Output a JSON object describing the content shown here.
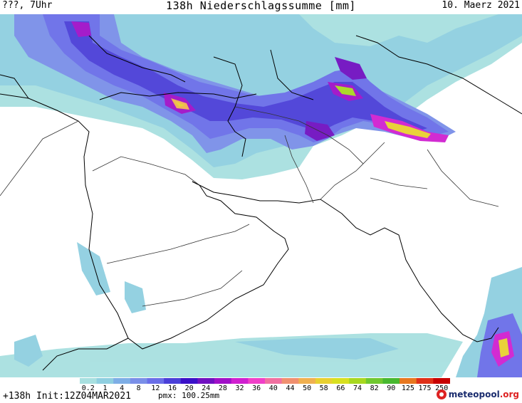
{
  "header": {
    "left": "???, 7Uhr",
    "center": "138h Niederschlagssumme [mm]",
    "right": "10. Maerz 2021"
  },
  "map": {
    "variable": "precipitation sum",
    "unit": "mm",
    "background_color": "#ffffff",
    "border_color": "#000000"
  },
  "legend": {
    "labels": [
      "0.2",
      "1",
      "4",
      "8",
      "12",
      "16",
      "20",
      "24",
      "28",
      "32",
      "36",
      "40",
      "44",
      "50",
      "58",
      "66",
      "74",
      "82",
      "90",
      "125",
      "175",
      "250"
    ],
    "colors": [
      "#a8e0e0",
      "#8fcfe0",
      "#7eaee6",
      "#7a8fe8",
      "#6a6ee8",
      "#4a3fd8",
      "#3a10c8",
      "#7010c0",
      "#a010c8",
      "#d020d0",
      "#f040c8",
      "#f070a0",
      "#f09070",
      "#f0b050",
      "#e8d030",
      "#d8e020",
      "#a8d820",
      "#70c830",
      "#48b830",
      "#e87820",
      "#e03018",
      "#c80000"
    ]
  },
  "footer": {
    "left": "+138h Init:12Z04MAR2021",
    "pmx": "pmx: 100.25mm"
  },
  "brand": {
    "name": "meteopool",
    "tld": ".org",
    "icon": "meteopool-logo-icon"
  }
}
